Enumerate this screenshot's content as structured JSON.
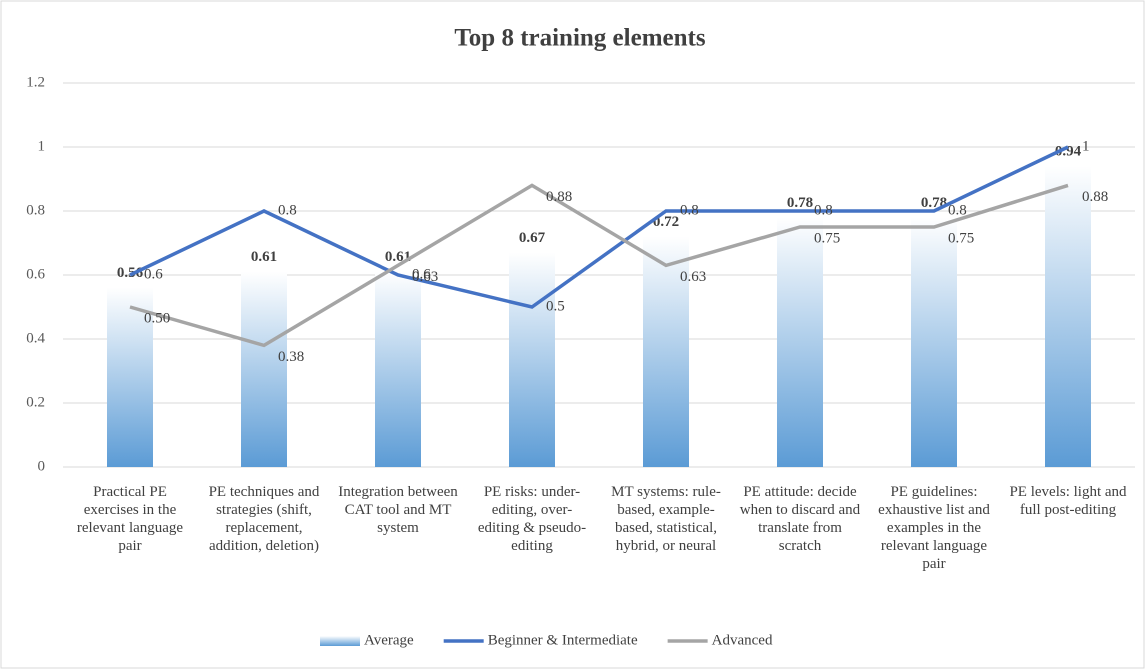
{
  "chart_data": {
    "type": "combo",
    "title": "Top 8 training elements",
    "categories": [
      "Practical PE exercises in the relevant language pair",
      "PE techniques and strategies (shift, replacement, addition, deletion)",
      "Integration between CAT tool and MT system",
      "PE risks: under-editing, over-editing & pseudo-editing",
      "MT systems: rule-based, example-based, statistical, hybrid, or neural",
      "PE attitude: decide when to discard and translate from scratch",
      "PE guidelines: exhaustive list and examples in the relevant language pair",
      "PE levels: light and full post-editing"
    ],
    "series": [
      {
        "name": "Average",
        "type": "bar",
        "color": "#5b9bd5",
        "values": [
          0.56,
          0.61,
          0.61,
          0.67,
          0.72,
          0.78,
          0.78,
          0.94
        ]
      },
      {
        "name": "Beginner & Intermediate",
        "type": "line",
        "color": "#4472c4",
        "values": [
          0.6,
          0.8,
          0.6,
          0.5,
          0.8,
          0.8,
          0.8,
          1
        ]
      },
      {
        "name": "Advanced",
        "type": "line",
        "color": "#a5a5a5",
        "values": [
          0.5,
          0.38,
          0.63,
          0.88,
          0.63,
          0.75,
          0.75,
          0.88
        ],
        "value_labels": [
          "0.50",
          "0.38",
          "0.63",
          "0.88",
          "0.63",
          "0.75",
          "0.75",
          "0.88"
        ]
      }
    ],
    "ylim": [
      0,
      1.2
    ],
    "yticks": [
      0,
      0.2,
      0.4,
      0.6,
      0.8,
      1,
      1.2
    ],
    "grid": true,
    "legend": "bottom"
  }
}
